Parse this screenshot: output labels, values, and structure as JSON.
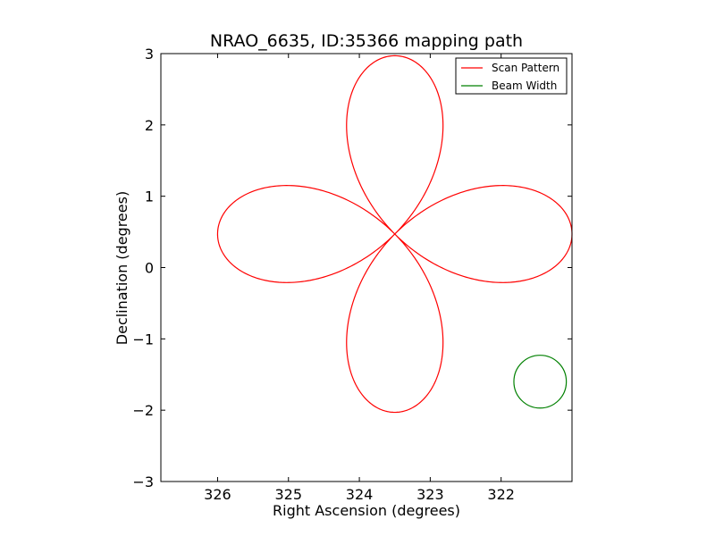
{
  "chart_data": {
    "type": "line",
    "title": "NRAO_6635, ID:35366 mapping path",
    "xlabel": "Right Ascension (degrees)",
    "ylabel": "Declination (degrees)",
    "xlim": [
      326.8,
      321.0
    ],
    "ylim": [
      -3,
      3
    ],
    "x_inverted": true,
    "x_ticks": [
      326,
      325,
      324,
      323,
      322
    ],
    "x_tick_labels": [
      "326",
      "325",
      "324",
      "323",
      "322"
    ],
    "y_ticks": [
      -3,
      -2,
      -1,
      0,
      1,
      2,
      3
    ],
    "y_tick_labels": [
      "−3",
      "−2",
      "−1",
      "0",
      "1",
      "2",
      "3"
    ],
    "grid": false,
    "legend_position": "top-right",
    "series": [
      {
        "name": "Scan Pattern",
        "color": "#ff0000",
        "shape": "four-petal rose",
        "center": [
          323.5,
          0.47
        ],
        "petal_length": 2.5,
        "start": [
          326.0,
          0.45
        ]
      },
      {
        "name": "Beam Width",
        "color": "#008000",
        "shape": "circle",
        "center": [
          321.45,
          -1.6
        ],
        "radius": 0.37
      }
    ]
  }
}
